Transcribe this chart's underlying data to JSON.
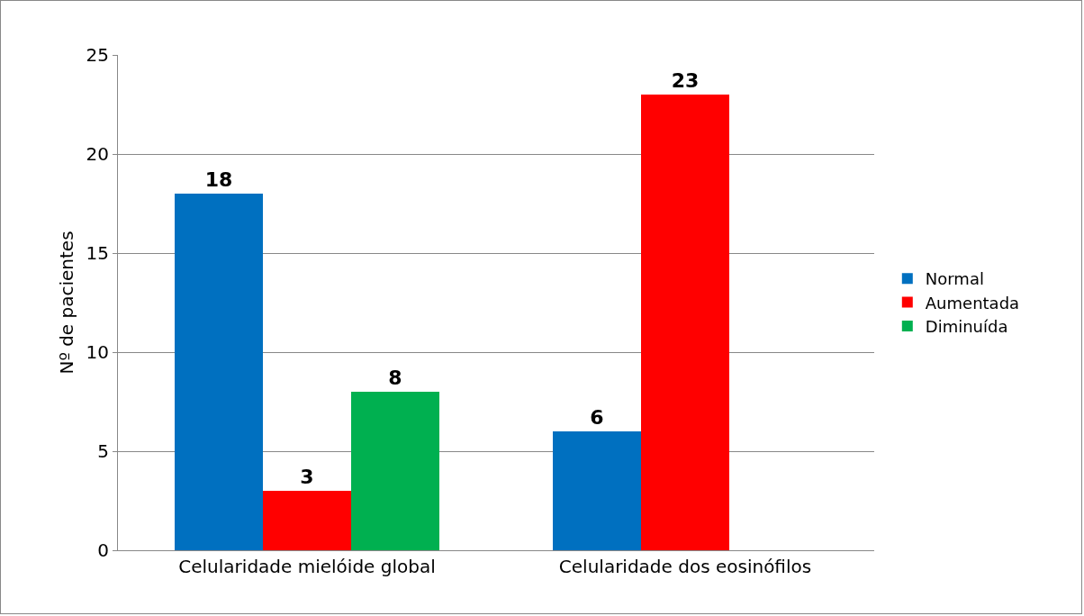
{
  "chart_data": {
    "type": "bar",
    "ylabel": "Nº de pacientes",
    "categories": [
      "Celularidade mielóide global",
      "Celularidade dos eosinófilos"
    ],
    "series": [
      {
        "name": "Normal",
        "color": "#0070c0",
        "values": [
          18,
          6
        ]
      },
      {
        "name": "Aumentada",
        "color": "#ff0000",
        "values": [
          3,
          23
        ]
      },
      {
        "name": "Diminuída",
        "color": "#00b050",
        "values": [
          8,
          null
        ]
      }
    ],
    "ylim": [
      0,
      25
    ],
    "yticks": [
      0,
      5,
      10,
      15,
      20,
      25
    ],
    "grid": "y",
    "legend": "right",
    "data_labels": true
  }
}
